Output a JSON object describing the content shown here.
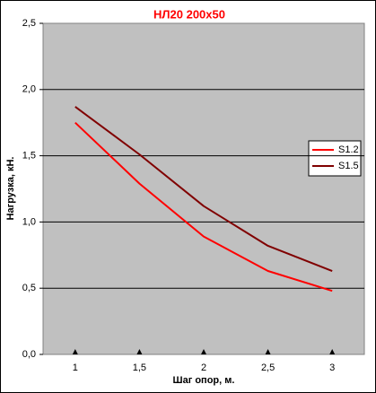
{
  "chart_data": {
    "type": "line",
    "title": "НЛ20 200х50",
    "x_label": "Шаг опор, м.",
    "y_label": "Нагрузка, кН.",
    "x": [
      1,
      1.5,
      2,
      2.5,
      3
    ],
    "series": [
      {
        "name": "S1.2",
        "color": "#ff0000",
        "values": [
          1.75,
          1.29,
          0.89,
          0.63,
          0.48
        ]
      },
      {
        "name": "S1.5",
        "color": "#800000",
        "values": [
          1.87,
          1.51,
          1.12,
          0.82,
          0.63
        ]
      }
    ],
    "xlim": [
      0.75,
      3.25
    ],
    "xticks": [
      1,
      {
        "value": 1.5,
        "label": "1,5"
      },
      2,
      {
        "value": 2.5,
        "label": "2,5"
      },
      3
    ],
    "ylim": [
      0,
      2.5
    ],
    "yticks": [
      {
        "value": 0,
        "label": "0,0"
      },
      {
        "value": 0.5,
        "label": "0,5"
      },
      {
        "value": 1,
        "label": "1,0"
      },
      {
        "value": 1.5,
        "label": "1,5"
      },
      {
        "value": 2,
        "label": "2,0"
      },
      {
        "value": 2.5,
        "label": "2,5"
      }
    ],
    "grid": true,
    "legend": "right"
  }
}
